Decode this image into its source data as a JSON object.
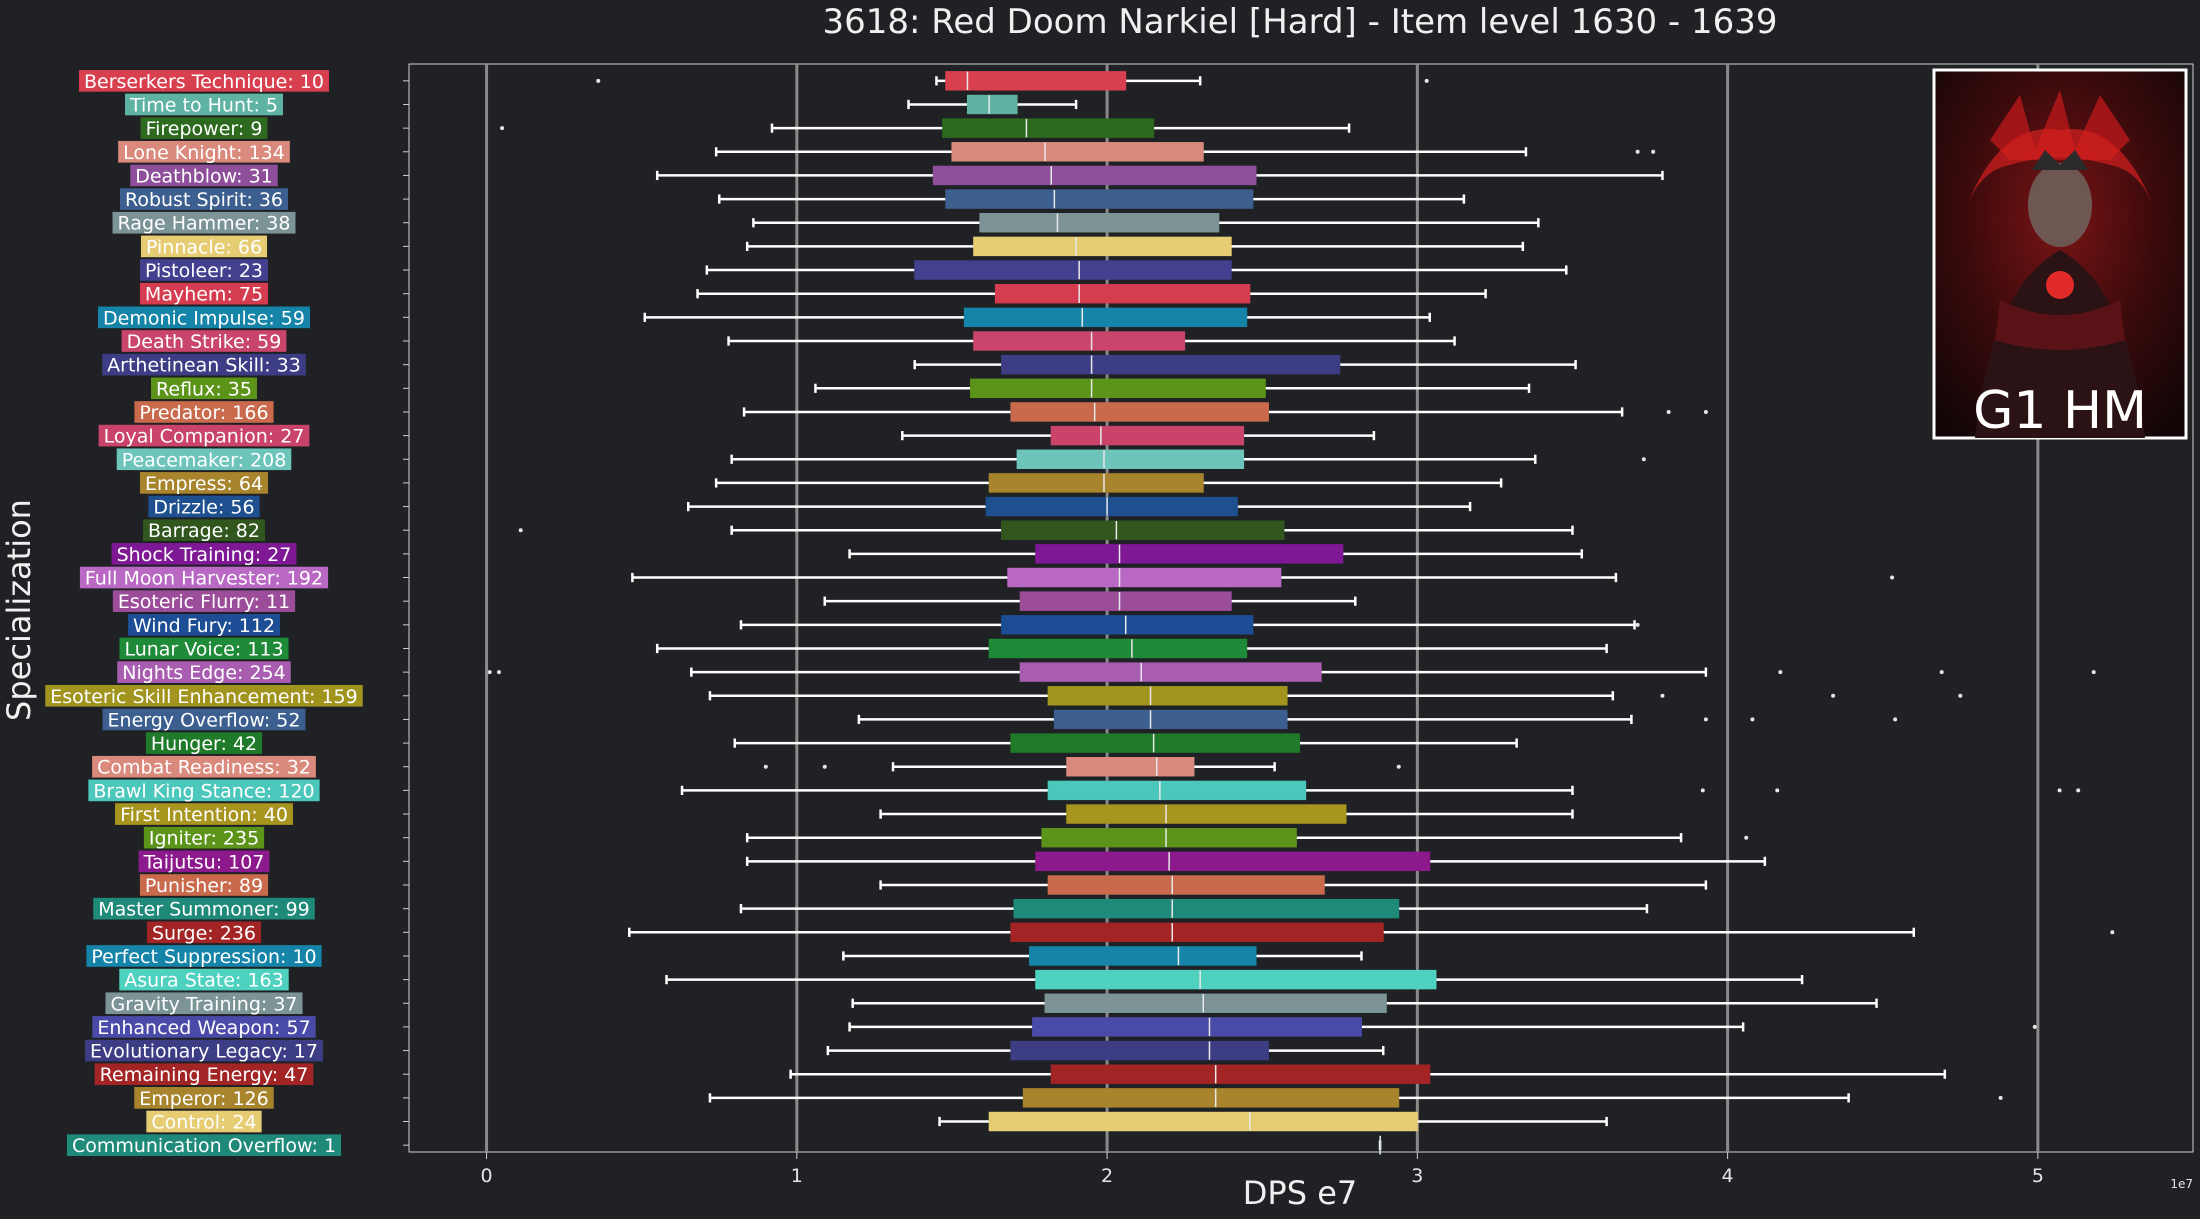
{
  "chart_data": {
    "type": "boxplot",
    "orientation": "horizontal",
    "title": "3618: Red Doom Narkiel [Hard] - Item level 1630 - 1639",
    "xlabel": "DPS e7",
    "ylabel": "Specialization",
    "x_offset_label": "1e7",
    "xlim": [
      -0.25,
      5.5
    ],
    "xticks": [
      0,
      1,
      2,
      3,
      4,
      5
    ],
    "grid": "vertical",
    "badge": {
      "text": "G1 HM",
      "image": "raid-boss-portrait"
    },
    "colors": {
      "background": "#1f2124",
      "whisker": "#ffffff",
      "grid": "#8a8a8a"
    },
    "series": [
      {
        "label": "Berserkers Technique: 10",
        "color": "#d9404f",
        "whislo": 1.45,
        "q1": 1.48,
        "med": 1.55,
        "q3": 2.06,
        "whishi": 2.3,
        "fliers": [
          0.36,
          3.03
        ]
      },
      {
        "label": "Time to Hunt: 5",
        "color": "#5fb3a2",
        "whislo": 1.36,
        "q1": 1.55,
        "med": 1.62,
        "q3": 1.71,
        "whishi": 1.9,
        "fliers": []
      },
      {
        "label": "Firepower: 9",
        "color": "#2d6a1f",
        "whislo": 0.92,
        "q1": 1.47,
        "med": 1.74,
        "q3": 2.15,
        "whishi": 2.78,
        "fliers": [
          0.05
        ]
      },
      {
        "label": "Lone Knight: 134",
        "color": "#d98a7c",
        "whislo": 0.74,
        "q1": 1.5,
        "med": 1.8,
        "q3": 2.31,
        "whishi": 3.35,
        "fliers": [
          3.71,
          3.76
        ]
      },
      {
        "label": "Deathblow: 31",
        "color": "#8e4f9a",
        "whislo": 0.55,
        "q1": 1.44,
        "med": 1.82,
        "q3": 2.48,
        "whishi": 3.79,
        "fliers": []
      },
      {
        "label": "Robust Spirit: 36",
        "color": "#3c5f8f",
        "whislo": 0.75,
        "q1": 1.48,
        "med": 1.83,
        "q3": 2.47,
        "whishi": 3.15,
        "fliers": []
      },
      {
        "label": "Rage Hammer: 38",
        "color": "#7c9496",
        "whislo": 0.86,
        "q1": 1.59,
        "med": 1.84,
        "q3": 2.36,
        "whishi": 3.39,
        "fliers": []
      },
      {
        "label": "Pinnacle: 66",
        "color": "#e6cc72",
        "whislo": 0.84,
        "q1": 1.57,
        "med": 1.9,
        "q3": 2.4,
        "whishi": 3.34,
        "fliers": []
      },
      {
        "label": "Pistoleer: 23",
        "color": "#43408f",
        "whislo": 0.71,
        "q1": 1.38,
        "med": 1.91,
        "q3": 2.4,
        "whishi": 3.48,
        "fliers": []
      },
      {
        "label": "Mayhem: 75",
        "color": "#d63c50",
        "whislo": 0.68,
        "q1": 1.64,
        "med": 1.91,
        "q3": 2.46,
        "whishi": 3.22,
        "fliers": []
      },
      {
        "label": "Demonic Impulse: 59",
        "color": "#1584a8",
        "whislo": 0.51,
        "q1": 1.54,
        "med": 1.92,
        "q3": 2.45,
        "whishi": 3.04,
        "fliers": []
      },
      {
        "label": "Death Strike: 59",
        "color": "#c9456b",
        "whislo": 0.78,
        "q1": 1.57,
        "med": 1.95,
        "q3": 2.25,
        "whishi": 3.12,
        "fliers": []
      },
      {
        "label": "Arthetinean Skill: 33",
        "color": "#3d3d85",
        "whislo": 1.38,
        "q1": 1.66,
        "med": 1.95,
        "q3": 2.75,
        "whishi": 3.51,
        "fliers": []
      },
      {
        "label": "Reflux: 35",
        "color": "#5c9419",
        "whislo": 1.06,
        "q1": 1.56,
        "med": 1.95,
        "q3": 2.51,
        "whishi": 3.36,
        "fliers": []
      },
      {
        "label": "Predator: 166",
        "color": "#c96a4c",
        "whislo": 0.83,
        "q1": 1.69,
        "med": 1.96,
        "q3": 2.52,
        "whishi": 3.66,
        "fliers": [
          3.81,
          3.93
        ]
      },
      {
        "label": "Loyal Companion: 27",
        "color": "#c9436a",
        "whislo": 1.34,
        "q1": 1.82,
        "med": 1.98,
        "q3": 2.44,
        "whishi": 2.86,
        "fliers": []
      },
      {
        "label": "Peacemaker: 208",
        "color": "#6cc4bb",
        "whislo": 0.79,
        "q1": 1.71,
        "med": 1.99,
        "q3": 2.44,
        "whishi": 3.38,
        "fliers": [
          3.73
        ]
      },
      {
        "label": "Empress: 64",
        "color": "#a8842c",
        "whislo": 0.74,
        "q1": 1.62,
        "med": 1.99,
        "q3": 2.31,
        "whishi": 3.27,
        "fliers": []
      },
      {
        "label": "Drizzle: 56",
        "color": "#1e4f8f",
        "whislo": 0.65,
        "q1": 1.61,
        "med": 2.0,
        "q3": 2.42,
        "whishi": 3.17,
        "fliers": []
      },
      {
        "label": "Barrage: 82",
        "color": "#31571f",
        "whislo": 0.79,
        "q1": 1.66,
        "med": 2.03,
        "q3": 2.57,
        "whishi": 3.5,
        "fliers": [
          0.11
        ]
      },
      {
        "label": "Shock Training: 27",
        "color": "#7e1894",
        "whislo": 1.17,
        "q1": 1.77,
        "med": 2.04,
        "q3": 2.76,
        "whishi": 3.53,
        "fliers": []
      },
      {
        "label": "Full Moon Harvester: 192",
        "color": "#b968c4",
        "whislo": 0.47,
        "q1": 1.68,
        "med": 2.04,
        "q3": 2.56,
        "whishi": 3.64,
        "fliers": [
          4.53
        ]
      },
      {
        "label": "Esoteric Flurry: 11",
        "color": "#9c4d9a",
        "whislo": 1.09,
        "q1": 1.72,
        "med": 2.04,
        "q3": 2.4,
        "whishi": 2.8,
        "fliers": []
      },
      {
        "label": "Wind Fury: 112",
        "color": "#1d4d94",
        "whislo": 0.82,
        "q1": 1.66,
        "med": 2.06,
        "q3": 2.47,
        "whishi": 3.7,
        "fliers": [
          3.71
        ]
      },
      {
        "label": "Lunar Voice: 113",
        "color": "#1f8a37",
        "whislo": 0.55,
        "q1": 1.62,
        "med": 2.08,
        "q3": 2.45,
        "whishi": 3.61,
        "fliers": []
      },
      {
        "label": "Nights Edge: 254",
        "color": "#a85db0",
        "whislo": 0.66,
        "q1": 1.72,
        "med": 2.11,
        "q3": 2.69,
        "whishi": 3.93,
        "fliers": [
          0.01,
          0.04,
          4.17,
          4.69,
          5.18
        ]
      },
      {
        "label": "Esoteric Skill Enhancement: 159",
        "color": "#a0941e",
        "whislo": 0.72,
        "q1": 1.81,
        "med": 2.14,
        "q3": 2.58,
        "whishi": 3.63,
        "fliers": [
          3.79,
          4.34,
          4.75
        ]
      },
      {
        "label": "Energy Overflow: 52",
        "color": "#3c5f8f",
        "whislo": 1.2,
        "q1": 1.83,
        "med": 2.14,
        "q3": 2.58,
        "whishi": 3.69,
        "fliers": [
          3.93,
          4.08,
          4.54
        ]
      },
      {
        "label": "Hunger: 42",
        "color": "#1f7a29",
        "whislo": 0.8,
        "q1": 1.69,
        "med": 2.15,
        "q3": 2.62,
        "whishi": 3.32,
        "fliers": []
      },
      {
        "label": "Combat Readiness: 32",
        "color": "#d98a7c",
        "whislo": 1.31,
        "q1": 1.87,
        "med": 2.16,
        "q3": 2.28,
        "whishi": 2.54,
        "fliers": [
          0.9,
          1.09,
          2.94
        ]
      },
      {
        "label": "Brawl King Stance: 120",
        "color": "#4bc7bb",
        "whislo": 0.63,
        "q1": 1.81,
        "med": 2.17,
        "q3": 2.64,
        "whishi": 3.5,
        "fliers": [
          3.92,
          4.16,
          5.07,
          5.13
        ]
      },
      {
        "label": "First Intention: 40",
        "color": "#a8951f",
        "whislo": 1.27,
        "q1": 1.87,
        "med": 2.19,
        "q3": 2.77,
        "whishi": 3.5,
        "fliers": []
      },
      {
        "label": "Igniter: 235",
        "color": "#5c9419",
        "whislo": 0.84,
        "q1": 1.79,
        "med": 2.19,
        "q3": 2.61,
        "whishi": 3.85,
        "fliers": [
          4.06
        ]
      },
      {
        "label": "Taijutsu: 107",
        "color": "#8c1a8c",
        "whislo": 0.84,
        "q1": 1.77,
        "med": 2.2,
        "q3": 3.04,
        "whishi": 4.12,
        "fliers": []
      },
      {
        "label": "Punisher: 89",
        "color": "#c96a4c",
        "whislo": 1.27,
        "q1": 1.81,
        "med": 2.21,
        "q3": 2.7,
        "whishi": 3.93,
        "fliers": []
      },
      {
        "label": "Master Summoner: 99",
        "color": "#1f8a7a",
        "whislo": 0.82,
        "q1": 1.7,
        "med": 2.21,
        "q3": 2.94,
        "whishi": 3.74,
        "fliers": []
      },
      {
        "label": "Surge: 236",
        "color": "#a32424",
        "whislo": 0.46,
        "q1": 1.69,
        "med": 2.21,
        "q3": 2.89,
        "whishi": 4.6,
        "fliers": [
          5.24
        ]
      },
      {
        "label": "Perfect Suppression: 10",
        "color": "#1584a8",
        "whislo": 1.15,
        "q1": 1.75,
        "med": 2.23,
        "q3": 2.48,
        "whishi": 2.82,
        "fliers": []
      },
      {
        "label": "Asura State: 163",
        "color": "#4fd1c0",
        "whislo": 0.58,
        "q1": 1.77,
        "med": 2.3,
        "q3": 3.06,
        "whishi": 4.24,
        "fliers": []
      },
      {
        "label": "Gravity Training: 37",
        "color": "#7c9496",
        "whislo": 1.18,
        "q1": 1.8,
        "med": 2.31,
        "q3": 2.9,
        "whishi": 4.48,
        "fliers": []
      },
      {
        "label": "Enhanced Weapon: 57",
        "color": "#4a4aa8",
        "whislo": 1.17,
        "q1": 1.76,
        "med": 2.33,
        "q3": 2.82,
        "whishi": 4.05,
        "fliers": [
          4.99
        ]
      },
      {
        "label": "Evolutionary Legacy: 17",
        "color": "#3d3d85",
        "whislo": 1.1,
        "q1": 1.69,
        "med": 2.33,
        "q3": 2.52,
        "whishi": 2.89,
        "fliers": []
      },
      {
        "label": "Remaining Energy: 47",
        "color": "#a32424",
        "whislo": 0.98,
        "q1": 1.82,
        "med": 2.35,
        "q3": 3.04,
        "whishi": 4.7,
        "fliers": []
      },
      {
        "label": "Emperor: 126",
        "color": "#a8842c",
        "whislo": 0.72,
        "q1": 1.73,
        "med": 2.35,
        "q3": 2.94,
        "whishi": 4.39,
        "fliers": [
          4.88
        ]
      },
      {
        "label": "Control: 24",
        "color": "#e6cc72",
        "whislo": 1.46,
        "q1": 1.62,
        "med": 2.46,
        "q3": 3.0,
        "whishi": 3.61,
        "fliers": []
      },
      {
        "label": "Communication Overflow: 1",
        "color": "#1f8a7a",
        "whislo": 2.88,
        "q1": 2.88,
        "med": 2.88,
        "q3": 2.88,
        "whishi": 2.88,
        "fliers": []
      }
    ]
  }
}
